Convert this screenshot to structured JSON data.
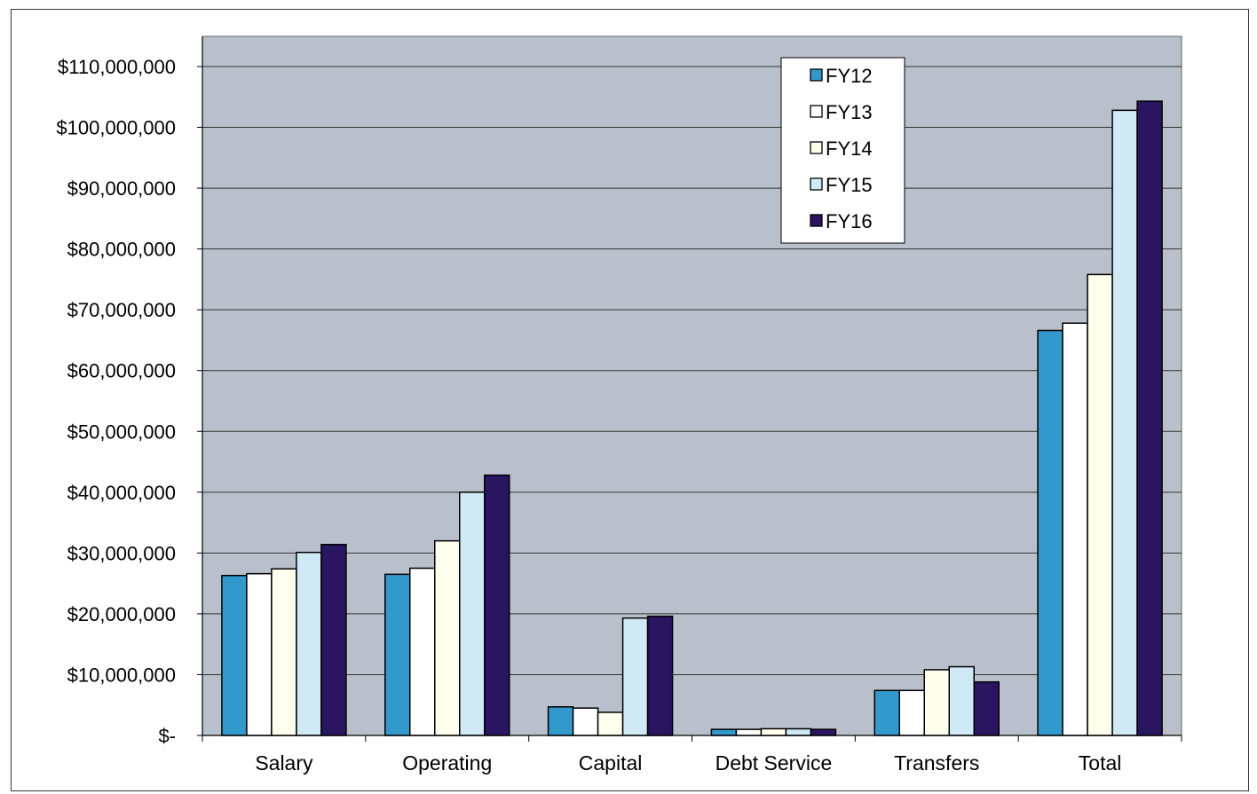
{
  "chart_data": {
    "type": "bar",
    "title": "",
    "xlabel": "",
    "ylabel": "",
    "categories": [
      "Salary",
      "Operating",
      "Capital",
      "Debt Service",
      "Transfers",
      "Total"
    ],
    "ylim": [
      0,
      110000000
    ],
    "y_ticks": [
      0,
      10000000,
      20000000,
      30000000,
      40000000,
      50000000,
      60000000,
      70000000,
      80000000,
      90000000,
      100000000,
      110000000
    ],
    "y_tick_labels": [
      "$-",
      "$10,000,000",
      "$20,000,000",
      "$30,000,000",
      "$40,000,000",
      "$50,000,000",
      "$60,000,000",
      "$70,000,000",
      "$80,000,000",
      "$90,000,000",
      "$100,000,000",
      "$110,000,000"
    ],
    "grid": true,
    "legend_position": "top-right",
    "series": [
      {
        "name": "FY12",
        "color": "#3399cc",
        "values": [
          26300000,
          26500000,
          4700000,
          1000000,
          7400000,
          66600000
        ]
      },
      {
        "name": "FY13",
        "color": "#ffffff",
        "values": [
          26600000,
          27500000,
          4500000,
          1000000,
          7400000,
          67800000
        ]
      },
      {
        "name": "FY14",
        "color": "#ffffee",
        "values": [
          27400000,
          32000000,
          3800000,
          1100000,
          10800000,
          75800000
        ]
      },
      {
        "name": "FY15",
        "color": "#cfe9f5",
        "values": [
          30100000,
          40000000,
          19300000,
          1100000,
          11300000,
          102800000
        ]
      },
      {
        "name": "FY16",
        "color": "#2a1660",
        "values": [
          31400000,
          42800000,
          19600000,
          1000000,
          8800000,
          104300000
        ]
      }
    ],
    "plot_background": "#b9c0cb"
  }
}
